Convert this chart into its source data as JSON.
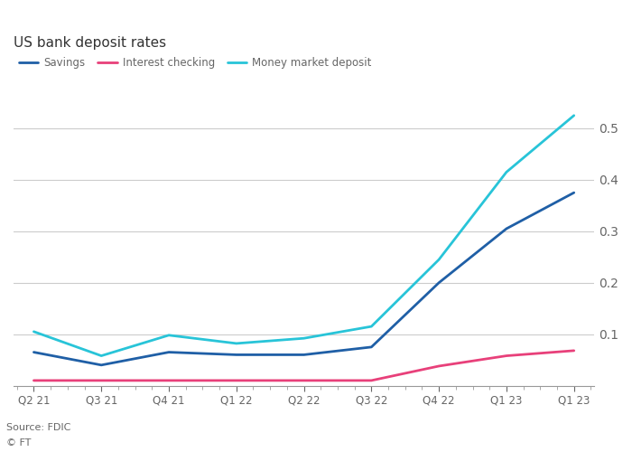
{
  "title": "US bank deposit rates",
  "source": "Source: FDIC",
  "copyright": "© FT",
  "x_labels": [
    "Q2 21",
    "Q3 21",
    "Q4 21",
    "Q1 22",
    "Q2 22",
    "Q3 22",
    "Q4 22",
    "Q1 23",
    "Q1 23"
  ],
  "x_ticks_positions": [
    0,
    1,
    2,
    3,
    4,
    5,
    6,
    7,
    8
  ],
  "savings": [
    0.065,
    0.04,
    0.065,
    0.06,
    0.06,
    0.075,
    0.2,
    0.305,
    0.375
  ],
  "interest_checking": [
    0.01,
    0.01,
    0.01,
    0.01,
    0.01,
    0.01,
    0.038,
    0.058,
    0.068
  ],
  "money_market": [
    0.105,
    0.058,
    0.098,
    0.082,
    0.092,
    0.115,
    0.245,
    0.415,
    0.525
  ],
  "savings_color": "#1f5fa6",
  "interest_checking_color": "#e8407a",
  "money_market_color": "#28c4d8",
  "ylim": [
    0,
    0.58
  ],
  "yticks": [
    0.1,
    0.2,
    0.3,
    0.4,
    0.5
  ],
  "background_color": "#ffffff",
  "grid_color": "#cccccc",
  "text_color": "#333333",
  "axis_label_color": "#666666",
  "line_width": 2.0,
  "legend_labels": [
    "Savings",
    "Interest checking",
    "Money market deposit"
  ]
}
